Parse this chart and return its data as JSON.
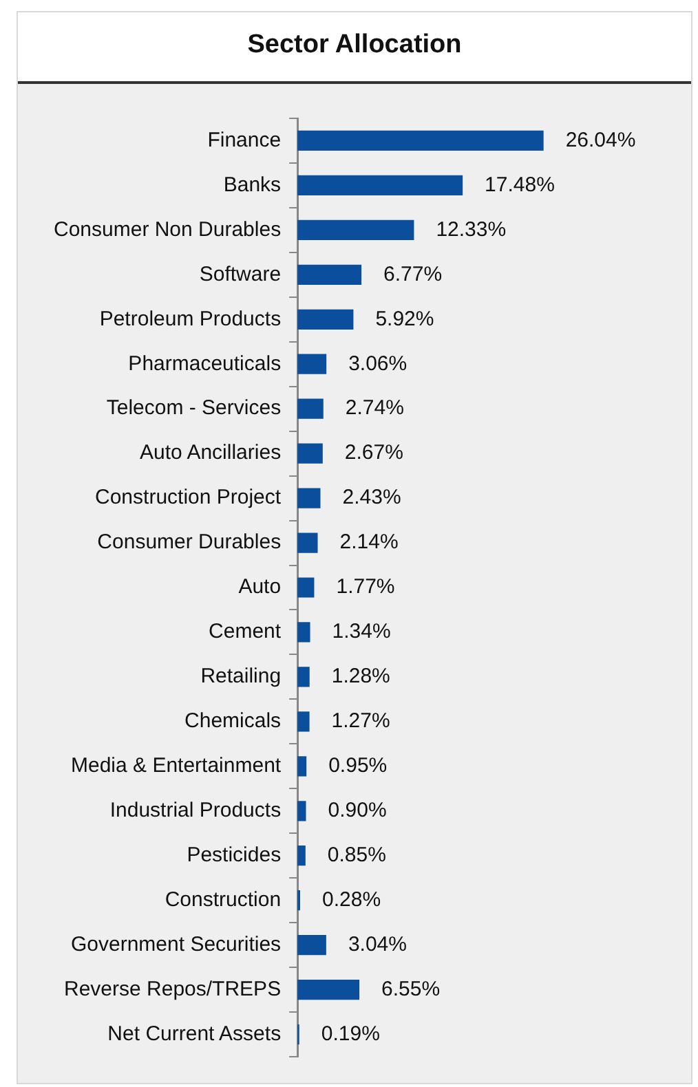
{
  "chart_data": {
    "type": "bar",
    "orientation": "horizontal",
    "title": "Sector Allocation",
    "categories": [
      "Finance",
      "Banks",
      "Consumer Non Durables",
      "Software",
      "Petroleum Products",
      "Pharmaceuticals",
      "Telecom - Services",
      "Auto Ancillaries",
      "Construction Project",
      "Consumer Durables",
      "Auto",
      "Cement",
      "Retailing",
      "Chemicals",
      "Media & Entertainment",
      "Industrial Products",
      "Pesticides",
      "Construction",
      "Government Securities",
      "Reverse Repos/TREPS",
      "Net Current Assets"
    ],
    "values": [
      26.04,
      17.48,
      12.33,
      6.77,
      5.92,
      3.06,
      2.74,
      2.67,
      2.43,
      2.14,
      1.77,
      1.34,
      1.28,
      1.27,
      0.95,
      0.9,
      0.85,
      0.28,
      3.04,
      6.55,
      0.19
    ],
    "value_labels": [
      "26.04%",
      "17.48%",
      "12.33%",
      "6.77%",
      "5.92%",
      "3.06%",
      "2.74%",
      "2.67%",
      "2.43%",
      "2.14%",
      "1.77%",
      "1.34%",
      "1.28%",
      "1.27%",
      "0.95%",
      "0.90%",
      "0.85%",
      "0.28%",
      "3.04%",
      "6.55%",
      "0.19%"
    ],
    "color": "#0b4f9c",
    "tick_labels": "y"
  }
}
